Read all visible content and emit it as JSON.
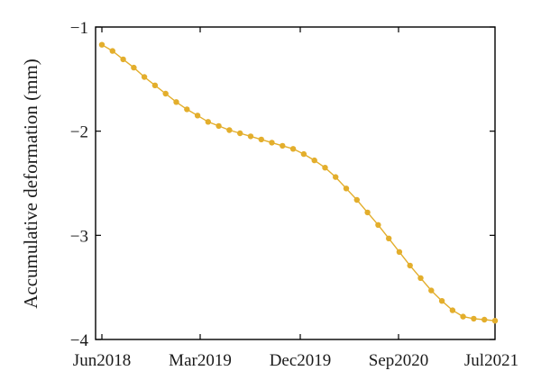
{
  "chart_data": {
    "type": "line",
    "title": "",
    "xlabel": "",
    "ylabel": "Accumulative deformation (mm)",
    "xlim": [
      "2018-06",
      "2021-07"
    ],
    "ylim": [
      -4,
      -1
    ],
    "xticks": [
      "Jun2018",
      "Mar2019",
      "Dec2019",
      "Sep2020",
      "Jul2021"
    ],
    "yticks": [
      "−1",
      "−2",
      "−3",
      "−4"
    ],
    "grid": false,
    "legend": "none",
    "series": [
      {
        "color": "#E3AE2C",
        "marker": "circle",
        "x": [
          "2018-06",
          "2018-07",
          "2018-08",
          "2018-09",
          "2018-10",
          "2018-11",
          "2018-12",
          "2019-01",
          "2019-02",
          "2019-03",
          "2019-04",
          "2019-05",
          "2019-06",
          "2019-07",
          "2019-08",
          "2019-09",
          "2019-10",
          "2019-11",
          "2019-12",
          "2020-01",
          "2020-02",
          "2020-03",
          "2020-04",
          "2020-05",
          "2020-06",
          "2020-07",
          "2020-08",
          "2020-09",
          "2020-10",
          "2020-11",
          "2020-12",
          "2021-01",
          "2021-02",
          "2021-03",
          "2021-04",
          "2021-05",
          "2021-06",
          "2021-07"
        ],
        "y": [
          -1.17,
          -1.23,
          -1.31,
          -1.39,
          -1.48,
          -1.56,
          -1.64,
          -1.72,
          -1.79,
          -1.85,
          -1.91,
          -1.95,
          -1.99,
          -2.02,
          -2.05,
          -2.08,
          -2.11,
          -2.14,
          -2.17,
          -2.22,
          -2.28,
          -2.35,
          -2.44,
          -2.55,
          -2.66,
          -2.78,
          -2.9,
          -3.03,
          -3.16,
          -3.29,
          -3.41,
          -3.53,
          -3.63,
          -3.72,
          -3.78,
          -3.8,
          -3.81,
          -3.82
        ]
      }
    ]
  }
}
